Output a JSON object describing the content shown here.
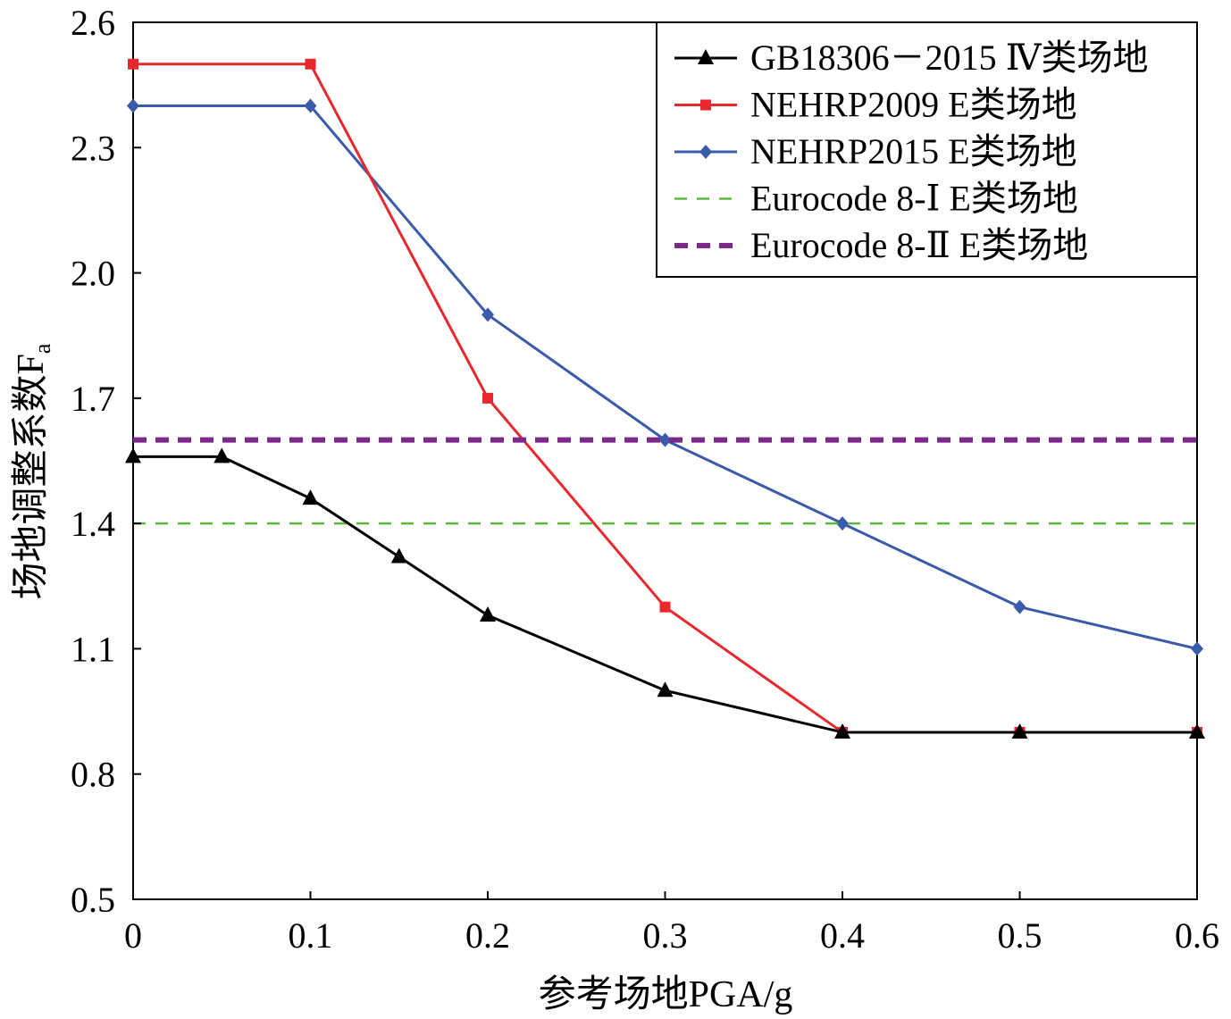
{
  "chart_data": {
    "type": "line",
    "xlabel": "参考场地PGA/g",
    "ylabel": "场地调整系数F",
    "ylabel_subscript": "a",
    "xlim": [
      0,
      0.6
    ],
    "ylim": [
      0.5,
      2.6
    ],
    "x_ticks": [
      "0",
      "0.1",
      "0.2",
      "0.3",
      "0.4",
      "0.5",
      "0.6"
    ],
    "y_ticks": [
      "0.5",
      "0.8",
      "1.1",
      "1.4",
      "1.7",
      "2.0",
      "2.3",
      "2.6"
    ],
    "grid": false,
    "legend_position": "top-right",
    "series": [
      {
        "name": "GB18306－2015 Ⅳ类场地",
        "color": "#000000",
        "marker": "triangle",
        "dash": "solid",
        "x": [
          0,
          0.05,
          0.1,
          0.15,
          0.2,
          0.3,
          0.4,
          0.5,
          0.6
        ],
        "y": [
          1.56,
          1.56,
          1.46,
          1.32,
          1.18,
          1.0,
          0.9,
          0.9,
          0.9
        ]
      },
      {
        "name": "NEHRP2009 E类场地",
        "color": "#e8282e",
        "marker": "square",
        "dash": "solid",
        "x": [
          0,
          0.1,
          0.2,
          0.3,
          0.4,
          0.5,
          0.6
        ],
        "y": [
          2.5,
          2.5,
          1.7,
          1.2,
          0.9,
          0.9,
          0.9
        ]
      },
      {
        "name": "NEHRP2015 E类场地",
        "color": "#3a5aaa",
        "marker": "diamond",
        "dash": "solid",
        "x": [
          0,
          0.1,
          0.2,
          0.3,
          0.4,
          0.5,
          0.6
        ],
        "y": [
          2.4,
          2.4,
          1.9,
          1.6,
          1.4,
          1.2,
          1.1
        ]
      },
      {
        "name": "Eurocode 8-Ⅰ E类场地",
        "color": "#5cb83c",
        "marker": "none",
        "dash": "thin-dashed",
        "x": [
          0,
          0.6
        ],
        "y": [
          1.4,
          1.4
        ]
      },
      {
        "name": "Eurocode 8-Ⅱ E类场地",
        "color": "#7b2a8a",
        "marker": "none",
        "dash": "thick-dashed",
        "x": [
          0,
          0.6
        ],
        "y": [
          1.6,
          1.6
        ]
      }
    ]
  }
}
